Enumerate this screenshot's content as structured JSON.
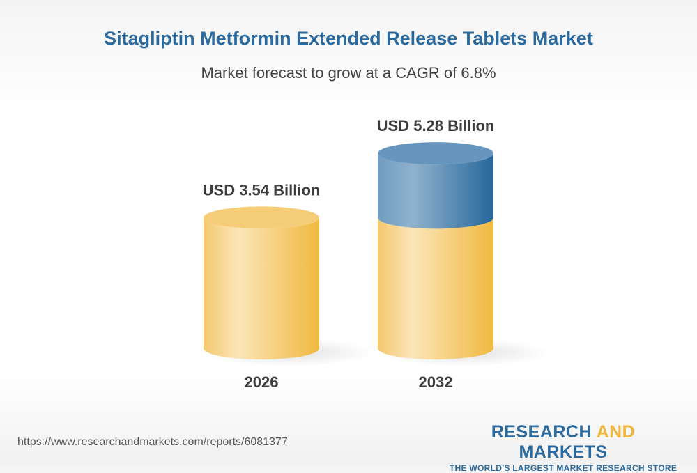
{
  "title": "Sitagliptin Metformin Extended Release Tablets Market",
  "subtitle": "Market forecast to grow at a CAGR of 6.8%",
  "chart_data": {
    "type": "bar",
    "style": "3d-cylinder",
    "categories": [
      "2026",
      "2032"
    ],
    "values": [
      3.54,
      5.28
    ],
    "data_labels": [
      "USD 3.54 Billion",
      "USD 5.28 Billion"
    ],
    "unit": "USD Billion",
    "cagr": "6.8%",
    "colors": {
      "base": "#f1b73d",
      "growth": "#2b6a9e"
    }
  },
  "footer": {
    "url": "https://www.researchandmarkets.com/reports/6081377",
    "logo_word1": "RESEARCH ",
    "logo_word2": "AND",
    "logo_word3": " MARKETS",
    "logo_tagline": "THE WORLD'S LARGEST MARKET RESEARCH STORE"
  }
}
